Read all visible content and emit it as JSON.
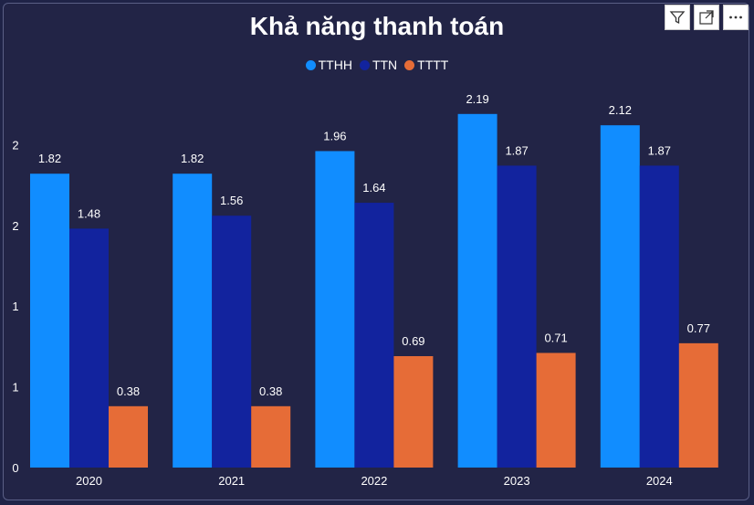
{
  "chart_data": {
    "type": "bar",
    "title": "Khả năng thanh toán",
    "categories": [
      "2020",
      "2021",
      "2022",
      "2023",
      "2024"
    ],
    "series": [
      {
        "name": "TTHH",
        "color": "#118dff",
        "values": [
          1.82,
          1.82,
          1.96,
          2.19,
          2.12
        ]
      },
      {
        "name": "TTN",
        "color": "#12239e",
        "values": [
          1.48,
          1.56,
          1.64,
          1.87,
          1.87
        ]
      },
      {
        "name": "TTTT",
        "color": "#e66c37",
        "values": [
          0.38,
          0.38,
          0.69,
          0.71,
          0.77
        ]
      }
    ],
    "y_tick_labels": [
      "0",
      "1",
      "1",
      "2",
      "2"
    ],
    "ylim": [
      0,
      2.5
    ],
    "legend_position": "top-center",
    "grid": false
  },
  "icons": {
    "filter": "filter-icon",
    "focus": "focus-mode-icon",
    "more": "more-options-icon"
  }
}
